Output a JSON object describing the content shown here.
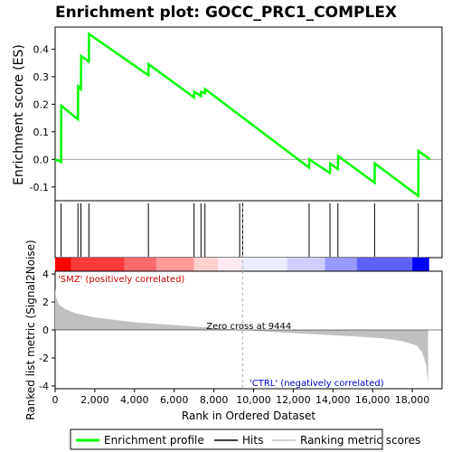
{
  "chart_data": {
    "type": "line",
    "title": "Enrichment plot: GOCC_PRC1_COMPLEX",
    "es_panel": {
      "ylabel": "Enrichment score (ES)",
      "ylim": [
        -0.15,
        0.48
      ],
      "yticks": [
        -0.1,
        0.0,
        0.1,
        0.2,
        0.3,
        0.4
      ],
      "ytick_labels": [
        "-0.1",
        "0.0",
        "0.1",
        "0.2",
        "0.3",
        "0.4"
      ],
      "series": [
        {
          "name": "Enrichment profile",
          "color": "#00ff00",
          "x": [
            0,
            300,
            310,
            1150,
            1160,
            1300,
            1310,
            1700,
            1710,
            4700,
            4710,
            7000,
            7010,
            7350,
            7360,
            7550,
            7560,
            12800,
            12810,
            13850,
            13860,
            14250,
            14260,
            16100,
            16110,
            18300,
            18310,
            18900
          ],
          "y": [
            0.0,
            -0.01,
            0.195,
            0.145,
            0.265,
            0.255,
            0.375,
            0.355,
            0.455,
            0.305,
            0.345,
            0.225,
            0.245,
            0.23,
            0.245,
            0.24,
            0.255,
            -0.03,
            0.0,
            -0.05,
            -0.015,
            -0.035,
            0.012,
            -0.085,
            -0.015,
            -0.133,
            0.03,
            0.0
          ]
        }
      ]
    },
    "hits": {
      "x": [
        300,
        1150,
        1300,
        1700,
        4700,
        7000,
        7350,
        7550,
        9300,
        9450,
        12800,
        13850,
        14250,
        16100,
        18300
      ]
    },
    "metric_panel": {
      "ylabel": "Ranked list metric (Signal2Noise)",
      "ylim": [
        -4.2,
        4.2
      ],
      "yticks": [
        -4,
        -2,
        0,
        2,
        4
      ],
      "ytick_labels": [
        "-4",
        "-2",
        "0",
        "2",
        "4"
      ],
      "x": [
        0,
        50,
        200,
        500,
        1000,
        2000,
        4000,
        6000,
        8000,
        9444,
        11000,
        13000,
        15000,
        16500,
        17500,
        18200,
        18500,
        18700,
        18800
      ],
      "y": [
        3.0,
        2.3,
        1.8,
        1.5,
        1.2,
        0.9,
        0.55,
        0.35,
        0.15,
        0.0,
        -0.15,
        -0.3,
        -0.45,
        -0.6,
        -0.8,
        -1.1,
        -1.6,
        -2.5,
        -3.9
      ],
      "zero_cross_label": "Zero cross at 9444",
      "positive_label": "'SMZ' (positively correlated)",
      "negative_label": "'CTRL' (negatively correlated)"
    },
    "xaxis": {
      "label": "Rank in Ordered Dataset",
      "xlim": [
        0,
        19500
      ],
      "ticks": [
        0,
        2000,
        4000,
        6000,
        8000,
        10000,
        12000,
        14000,
        16000,
        18000
      ],
      "tick_labels": [
        "0",
        "2,000",
        "4,000",
        "6,000",
        "8,000",
        "10,000",
        "12,000",
        "14,000",
        "16,000",
        "18,000"
      ],
      "n_genes": 18850
    },
    "legend": {
      "placement": "bottom",
      "items": [
        {
          "label": "Enrichment profile",
          "color": "#00ff00"
        },
        {
          "label": "Hits",
          "color": "#000000"
        },
        {
          "label": "Ranking metric scores",
          "color": "#c0c0c0"
        }
      ]
    },
    "colors": {
      "profile": "#00ff00",
      "metric_fill": "#c0c0c0",
      "positive_text": "#cc0000",
      "negative_text": "#0000cc",
      "red_bar": "#ff0000",
      "blue_bar": "#0000ff"
    }
  }
}
